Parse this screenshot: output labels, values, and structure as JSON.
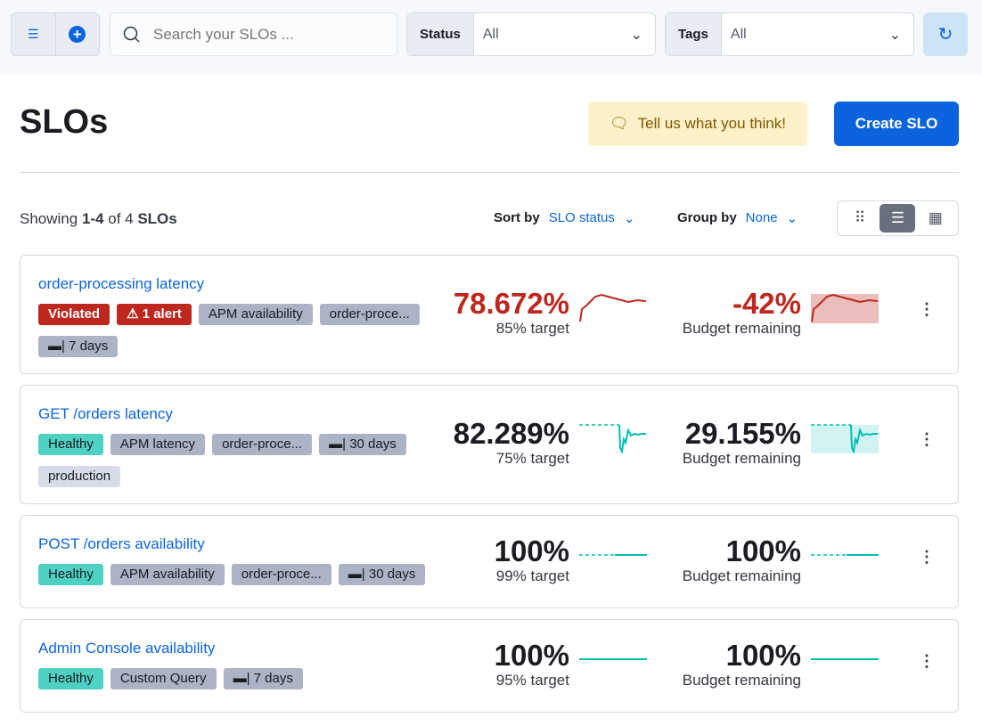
{
  "toolbar": {
    "search_placeholder": "Search your SLOs ...",
    "status_label": "Status",
    "status_value": "All",
    "tags_label": "Tags",
    "tags_value": "All"
  },
  "header": {
    "title": "SLOs",
    "feedback": "Tell us what you think!",
    "create": "Create SLO"
  },
  "list_controls": {
    "showing_prefix": "Showing ",
    "range": "1-4",
    "of": " of 4 ",
    "unit": "SLOs",
    "sort_label": "Sort by",
    "sort_value": "SLO status",
    "group_label": "Group by",
    "group_value": "None"
  },
  "colors": {
    "violated": "#bd271e",
    "healthy": "#00bfb3",
    "accent": "#0b64dd"
  },
  "slos": [
    {
      "name": "order-processing latency",
      "status": "Violated",
      "badges": [
        {
          "text": "Violated",
          "kind": "red"
        },
        {
          "text": "⚠ 1 alert",
          "kind": "red"
        },
        {
          "text": "APM availability",
          "kind": "grey"
        },
        {
          "text": "order-proce...",
          "kind": "grey"
        },
        {
          "text": "7 days",
          "kind": "grey",
          "icon": "calendar-icon"
        }
      ],
      "sli": "78.672%",
      "target": "85% target",
      "budget": "-42%",
      "budget_label": "Budget remaining"
    },
    {
      "name": "GET /orders latency",
      "status": "Healthy",
      "badges": [
        {
          "text": "Healthy",
          "kind": "green"
        },
        {
          "text": "APM latency",
          "kind": "grey"
        },
        {
          "text": "order-proce...",
          "kind": "grey"
        },
        {
          "text": "30 days",
          "kind": "grey",
          "icon": "calendar-icon"
        },
        {
          "text": "production",
          "kind": "light"
        }
      ],
      "sli": "82.289%",
      "target": "75% target",
      "budget": "29.155%",
      "budget_label": "Budget remaining"
    },
    {
      "name": "POST /orders availability",
      "status": "Healthy",
      "badges": [
        {
          "text": "Healthy",
          "kind": "green"
        },
        {
          "text": "APM availability",
          "kind": "grey"
        },
        {
          "text": "order-proce...",
          "kind": "grey"
        },
        {
          "text": "30 days",
          "kind": "grey",
          "icon": "calendar-icon"
        }
      ],
      "sli": "100%",
      "target": "99% target",
      "budget": "100%",
      "budget_label": "Budget remaining"
    },
    {
      "name": "Admin Console availability",
      "status": "Healthy",
      "badges": [
        {
          "text": "Healthy",
          "kind": "green"
        },
        {
          "text": "Custom Query",
          "kind": "grey"
        },
        {
          "text": "7 days",
          "kind": "grey",
          "icon": "calendar-icon"
        }
      ],
      "sli": "100%",
      "target": "95% target",
      "budget": "100%",
      "budget_label": "Budget remaining"
    }
  ]
}
